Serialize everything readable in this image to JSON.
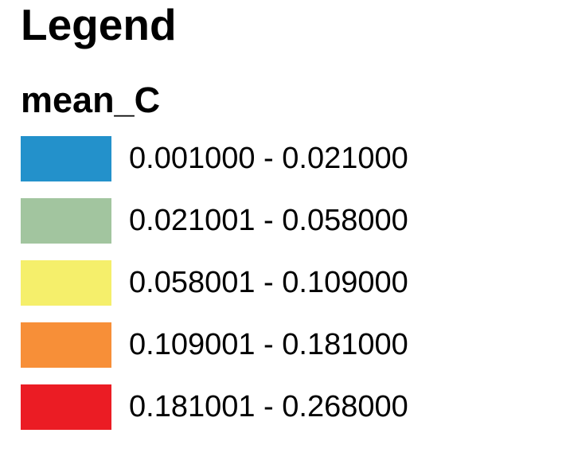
{
  "legend": {
    "title": "Legend",
    "field": "mean_C",
    "classes": [
      {
        "label": "0.001000 - 0.021000",
        "color": "#2391cb"
      },
      {
        "label": "0.021001 - 0.058000",
        "color": "#a2c59f"
      },
      {
        "label": "0.058001 - 0.109000",
        "color": "#f5ef6b"
      },
      {
        "label": "0.109001 - 0.181000",
        "color": "#f78f38"
      },
      {
        "label": "0.181001 - 0.268000",
        "color": "#eb1c24"
      }
    ]
  }
}
